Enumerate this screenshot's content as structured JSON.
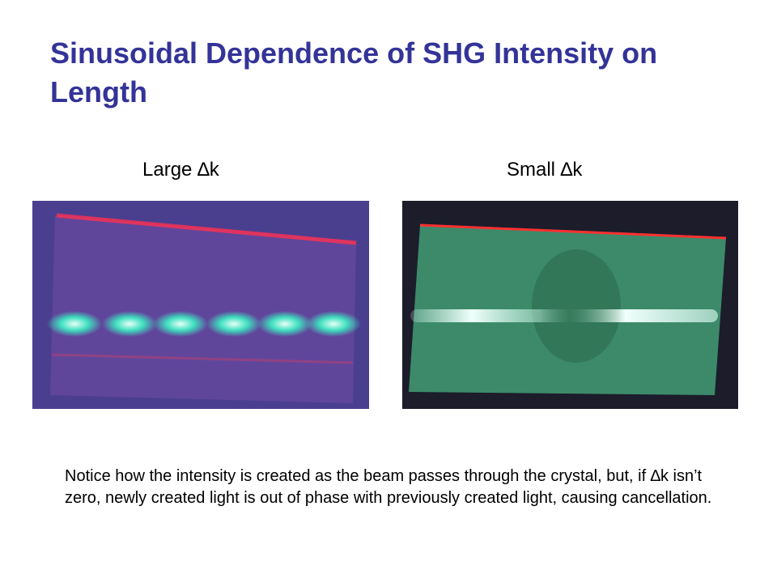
{
  "slide": {
    "title": "Sinusoidal Dependence of SHG Intensity on Length",
    "images": [
      {
        "caption": "Large ∆k"
      },
      {
        "caption": "Small ∆k"
      }
    ],
    "body": "Notice how the intensity is created as the beam passes through the crystal, but, if ∆k isn’t zero, newly created light is out of phase with previously created light, causing cancellation."
  }
}
